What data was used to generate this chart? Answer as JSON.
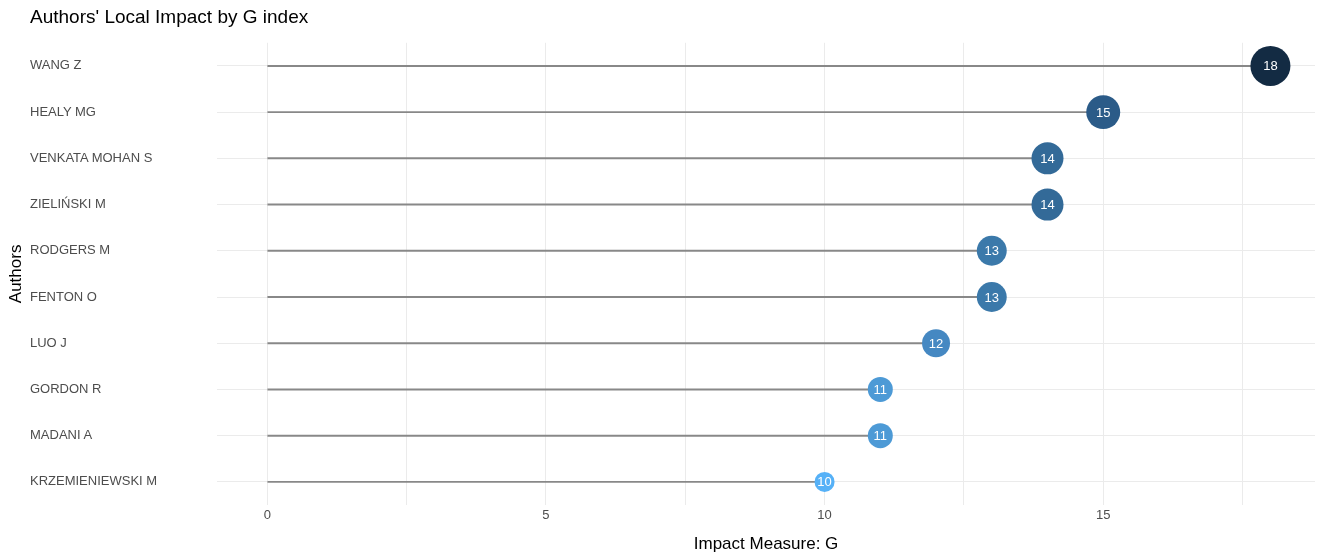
{
  "chart_data": {
    "type": "lollipop",
    "orientation": "horizontal",
    "title": "Authors' Local Impact by G index",
    "xlabel": "Impact Measure: G",
    "ylabel": "Authors",
    "categories": [
      "WANG Z",
      "HEALY MG",
      "VENKATA MOHAN S",
      "ZIELIŃSKI M",
      "RODGERS M",
      "FENTON O",
      "LUO J",
      "GORDON R",
      "MADANI A",
      "KRZEMIENIEWSKI M"
    ],
    "values": [
      18,
      15,
      14,
      14,
      13,
      13,
      12,
      11,
      11,
      10
    ],
    "sizes": [
      1,
      0.72,
      0.64,
      0.64,
      0.56,
      0.56,
      0.49,
      0.39,
      0.39,
      0.25
    ],
    "colors": [
      "#132b43",
      "#2b5b88",
      "#336a98",
      "#336a98",
      "#3b79aa",
      "#3b79aa",
      "#4588c2",
      "#4d9ad6",
      "#4d9ad6",
      "#56b1f7"
    ],
    "xlim": [
      -0.9,
      18.8
    ],
    "xticks": [
      0,
      {
        "value": 2.5,
        "label": null
      },
      5,
      {
        "value": 7.5,
        "label": null
      },
      10,
      {
        "value": 12.5,
        "label": null
      },
      15,
      {
        "value": 17.5,
        "label": null
      }
    ],
    "grid": true,
    "legend": false,
    "data_labels": true
  }
}
